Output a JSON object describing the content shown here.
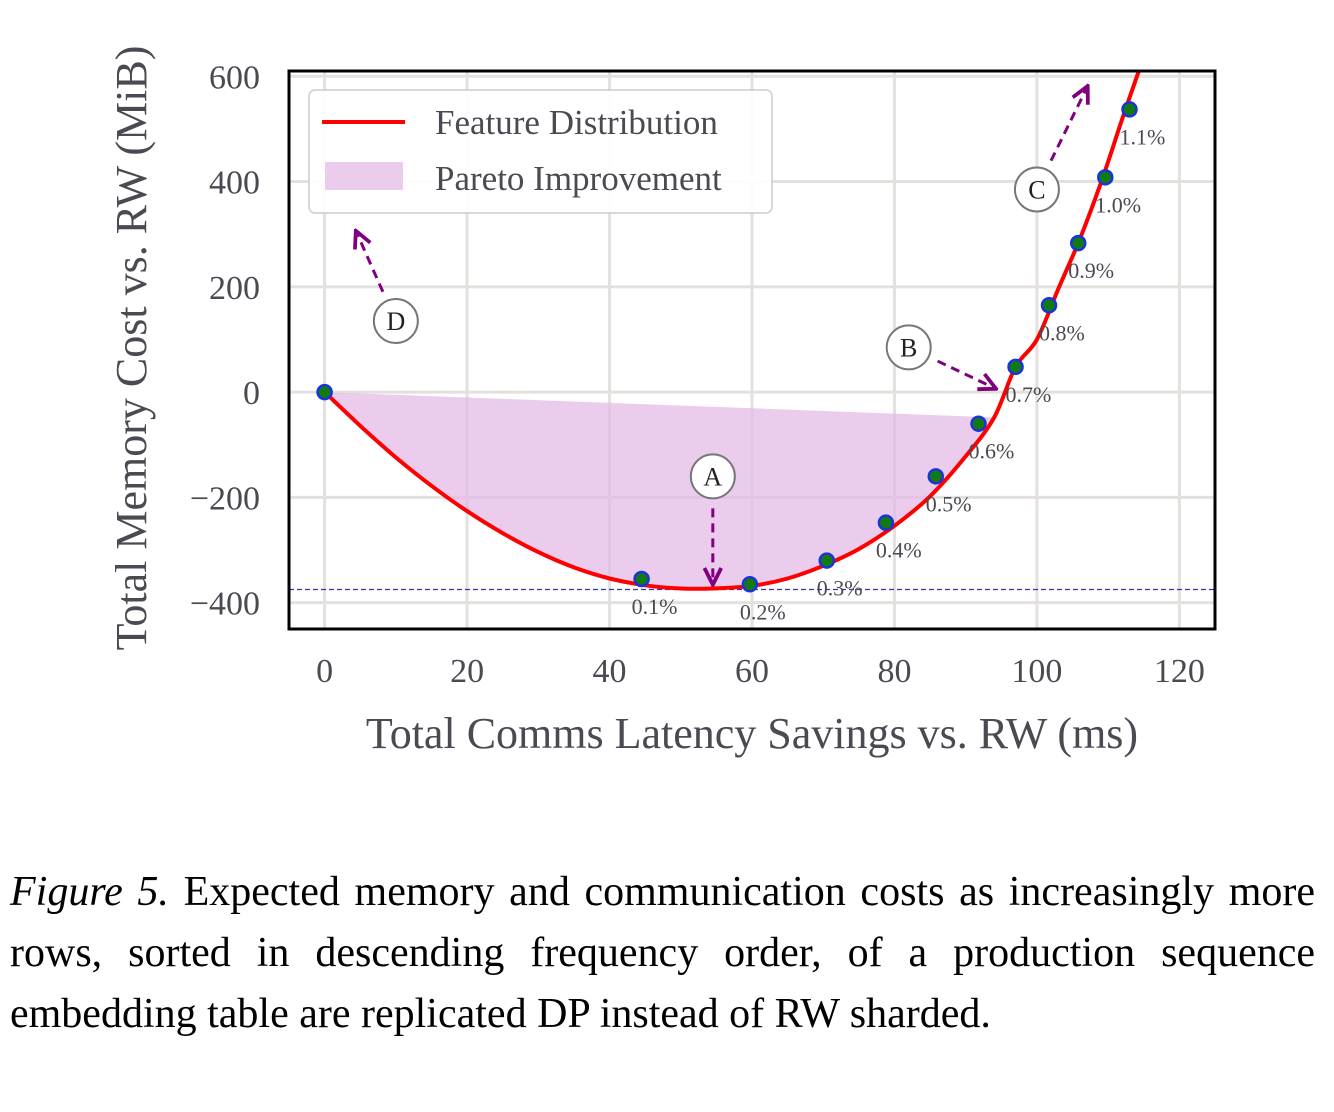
{
  "chart_data": {
    "type": "line",
    "xlabel": "Total Comms Latency Savings vs. RW (ms)",
    "ylabel": "Total Memory Cost vs. RW (MiB)",
    "xlim": [
      -5,
      125
    ],
    "ylim": [
      -450,
      610
    ],
    "xticks": [
      0,
      20,
      40,
      60,
      80,
      100,
      120
    ],
    "yticks": [
      600,
      400,
      200,
      0,
      -200,
      -400
    ],
    "ytick_labels": [
      "600",
      "400",
      "200",
      "0",
      "−200",
      "−400"
    ],
    "grid": true,
    "reference_line": {
      "y": -375,
      "style": "dashed",
      "color": "#3333bb"
    },
    "series": [
      {
        "name": "Feature Distribution",
        "color": "#ff0000",
        "curve_x": [
          0,
          5,
          10,
          15,
          20,
          25,
          30,
          35,
          40,
          45,
          50,
          54.5,
          60,
          65,
          70,
          75,
          80,
          85,
          90,
          94,
          97,
          100,
          103,
          106,
          109,
          112,
          114.3
        ],
        "curve_y": [
          0,
          -64,
          -124,
          -178,
          -226,
          -268,
          -304,
          -333,
          -354,
          -367,
          -373,
          -373,
          -368,
          -354,
          -330,
          -298,
          -254,
          -198,
          -122,
          -48,
          48,
          100,
          196,
          290,
          398,
          520,
          610
        ]
      }
    ],
    "points": [
      {
        "x": 0,
        "y": 0,
        "label": ""
      },
      {
        "x": 44.5,
        "y": -355,
        "label": "0.1%"
      },
      {
        "x": 59.7,
        "y": -365,
        "label": "0.2%"
      },
      {
        "x": 70.5,
        "y": -320,
        "label": "0.3%"
      },
      {
        "x": 78.8,
        "y": -248,
        "label": "0.4%"
      },
      {
        "x": 85.8,
        "y": -160,
        "label": "0.5%"
      },
      {
        "x": 91.8,
        "y": -60,
        "label": "0.6%"
      },
      {
        "x": 97,
        "y": 48,
        "label": "0.7%"
      },
      {
        "x": 101.7,
        "y": 165,
        "label": "0.8%"
      },
      {
        "x": 105.8,
        "y": 283,
        "label": "0.9%"
      },
      {
        "x": 109.6,
        "y": 408,
        "label": "1.0%"
      },
      {
        "x": 113,
        "y": 537,
        "label": "1.1%"
      }
    ],
    "fill_region": {
      "name": "Pareto Improvement",
      "color": "#e5b8e6",
      "x_from": 0,
      "x_to": 94
    },
    "legend": {
      "placement": "top-left",
      "entries": [
        "Feature Distribution",
        "Pareto Improvement"
      ]
    },
    "annotations": [
      {
        "label": "A",
        "x": 54.5,
        "y": -160,
        "arrow_to": [
          54.5,
          -362
        ]
      },
      {
        "label": "B",
        "x": 82,
        "y": 85,
        "arrow_to": [
          94,
          8
        ]
      },
      {
        "label": "C",
        "x": 100,
        "y": 385,
        "arrow_to": [
          107,
          578
        ]
      },
      {
        "label": "D",
        "x": 10,
        "y": 135,
        "arrow_to": [
          4.5,
          303
        ]
      }
    ]
  },
  "caption": {
    "label": "Figure 5.",
    "text": " Expected memory and communication costs as increasingly more rows, sorted in descending frequency order, of a production sequence embedding table are replicated DP instead of RW sharded."
  }
}
